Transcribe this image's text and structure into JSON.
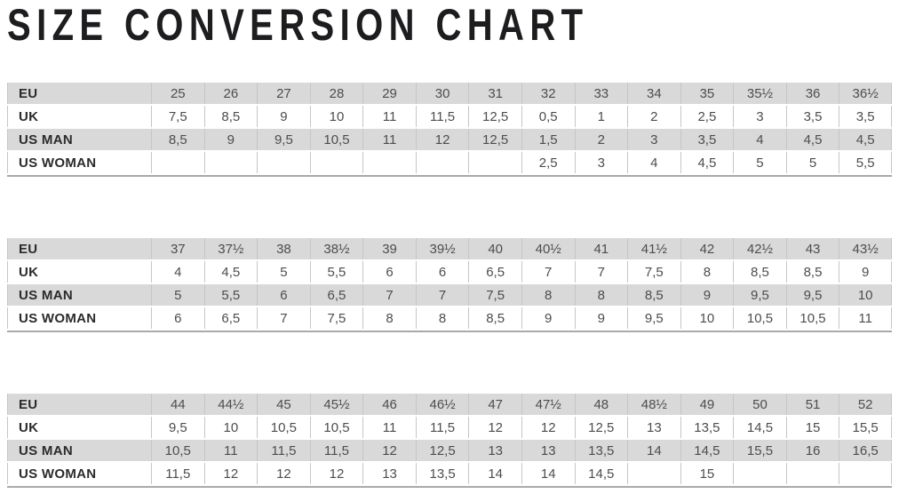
{
  "page": {
    "title": "SIZE CONVERSION CHART"
  },
  "colors": {
    "title_text": "#1d1d20",
    "shaded_row_fill": "#d9d9d9",
    "alt_row_fill": "#ffffff",
    "grid_line": "#c6c6c6",
    "table_bottom_border": "#a9a9a9",
    "label_text": "#2b2b2b",
    "value_text": "#4d4d4d"
  },
  "tables": [
    {
      "name": "sizes EU 25 - 36½",
      "rows": [
        {
          "label": "EU",
          "values": [
            "25",
            "26",
            "27",
            "28",
            "29",
            "30",
            "31",
            "32",
            "33",
            "34",
            "35",
            "35½",
            "36",
            "36½"
          ]
        },
        {
          "label": "UK",
          "values": [
            "7,5",
            "8,5",
            "9",
            "10",
            "11",
            "11,5",
            "12,5",
            "0,5",
            "1",
            "2",
            "2,5",
            "3",
            "3,5",
            "3,5"
          ]
        },
        {
          "label": "US MAN",
          "values": [
            "8,5",
            "9",
            "9,5",
            "10,5",
            "11",
            "12",
            "12,5",
            "1,5",
            "2",
            "3",
            "3,5",
            "4",
            "4,5",
            "4,5"
          ]
        },
        {
          "label": "US WOMAN",
          "values": [
            "",
            "",
            "",
            "",
            "",
            "",
            "",
            "2,5",
            "3",
            "4",
            "4,5",
            "5",
            "5",
            "5,5"
          ]
        }
      ]
    },
    {
      "name": "sizes EU 37 - 43½",
      "rows": [
        {
          "label": "EU",
          "values": [
            "37",
            "37½",
            "38",
            "38½",
            "39",
            "39½",
            "40",
            "40½",
            "41",
            "41½",
            "42",
            "42½",
            "43",
            "43½"
          ]
        },
        {
          "label": "UK",
          "values": [
            "4",
            "4,5",
            "5",
            "5,5",
            "6",
            "6",
            "6,5",
            "7",
            "7",
            "7,5",
            "8",
            "8,5",
            "8,5",
            "9"
          ]
        },
        {
          "label": "US MAN",
          "values": [
            "5",
            "5,5",
            "6",
            "6,5",
            "7",
            "7",
            "7,5",
            "8",
            "8",
            "8,5",
            "9",
            "9,5",
            "9,5",
            "10"
          ]
        },
        {
          "label": "US WOMAN",
          "values": [
            "6",
            "6,5",
            "7",
            "7,5",
            "8",
            "8",
            "8,5",
            "9",
            "9",
            "9,5",
            "10",
            "10,5",
            "10,5",
            "11"
          ]
        }
      ]
    },
    {
      "name": "sizes EU 44 - 52",
      "rows": [
        {
          "label": "EU",
          "values": [
            "44",
            "44½",
            "45",
            "45½",
            "46",
            "46½",
            "47",
            "47½",
            "48",
            "48½",
            "49",
            "50",
            "51",
            "52"
          ]
        },
        {
          "label": "UK",
          "values": [
            "9,5",
            "10",
            "10,5",
            "10,5",
            "11",
            "11,5",
            "12",
            "12",
            "12,5",
            "13",
            "13,5",
            "14,5",
            "15",
            "15,5"
          ]
        },
        {
          "label": "US MAN",
          "values": [
            "10,5",
            "11",
            "11,5",
            "11,5",
            "12",
            "12,5",
            "13",
            "13",
            "13,5",
            "14",
            "14,5",
            "15,5",
            "16",
            "16,5"
          ]
        },
        {
          "label": "US WOMAN",
          "values": [
            "11,5",
            "12",
            "12",
            "12",
            "13",
            "13,5",
            "14",
            "14",
            "14,5",
            "",
            "15",
            "",
            "",
            ""
          ]
        }
      ]
    }
  ]
}
